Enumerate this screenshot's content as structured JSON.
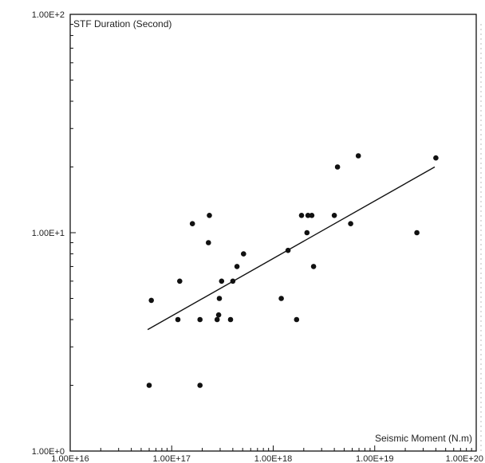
{
  "chart_data": {
    "type": "scatter",
    "title": "",
    "ylabel": "STF Duration (Second)",
    "xlabel": "Seismic Moment (N.m)",
    "x_scale": "log",
    "y_scale": "log",
    "xlim": [
      1e+16,
      1e+20
    ],
    "ylim": [
      1,
      100
    ],
    "grid": false,
    "x_tick_labels": [
      "1.00E+16",
      "1.00E+17",
      "1.00E+18",
      "1.00E+19",
      "1.00E+20"
    ],
    "y_tick_labels": [
      "1.00E+0",
      "1.00E+1",
      "1.00E+2"
    ],
    "x_tick_values": [
      1e+16,
      1e+17,
      1e+18,
      1e+19,
      1e+20
    ],
    "y_tick_values": [
      1,
      10,
      100
    ],
    "series": [
      {
        "points": [
          {
            "x": 6e+16,
            "y": 2.0
          },
          {
            "x": 6.3e+16,
            "y": 4.9
          },
          {
            "x": 1.15e+17,
            "y": 4.0
          },
          {
            "x": 1.2e+17,
            "y": 6.0
          },
          {
            "x": 1.6e+17,
            "y": 11.0
          },
          {
            "x": 1.9e+17,
            "y": 2.0
          },
          {
            "x": 1.9e+17,
            "y": 4.0
          },
          {
            "x": 2.3e+17,
            "y": 9.0
          },
          {
            "x": 2.35e+17,
            "y": 12.0
          },
          {
            "x": 2.8e+17,
            "y": 4.0
          },
          {
            "x": 2.9e+17,
            "y": 4.2
          },
          {
            "x": 2.95e+17,
            "y": 5.0
          },
          {
            "x": 3.1e+17,
            "y": 6.0
          },
          {
            "x": 3.8e+17,
            "y": 4.0
          },
          {
            "x": 4e+17,
            "y": 6.0
          },
          {
            "x": 4.4e+17,
            "y": 7.0
          },
          {
            "x": 5.1e+17,
            "y": 8.0
          },
          {
            "x": 1.2e+18,
            "y": 5.0
          },
          {
            "x": 1.4e+18,
            "y": 8.3
          },
          {
            "x": 1.7e+18,
            "y": 4.0
          },
          {
            "x": 1.9e+18,
            "y": 12.0
          },
          {
            "x": 2.15e+18,
            "y": 10.0
          },
          {
            "x": 2.2e+18,
            "y": 12.0
          },
          {
            "x": 2.4e+18,
            "y": 12.0
          },
          {
            "x": 2.5e+18,
            "y": 7.0
          },
          {
            "x": 4e+18,
            "y": 12.0
          },
          {
            "x": 4.3e+18,
            "y": 20.0
          },
          {
            "x": 5.8e+18,
            "y": 11.0
          },
          {
            "x": 6.9e+18,
            "y": 22.5
          },
          {
            "x": 2.6e+19,
            "y": 10.0
          },
          {
            "x": 4e+19,
            "y": 22.0
          }
        ]
      }
    ],
    "fit_line": {
      "x": [
        5.8e+16,
        3.9e+19
      ],
      "y": [
        3.6,
        20.0
      ]
    }
  }
}
